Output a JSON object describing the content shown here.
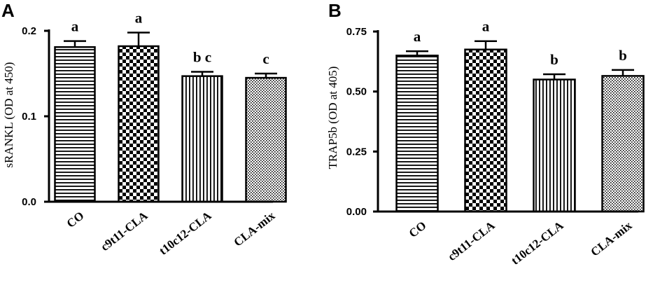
{
  "chart_data": [
    {
      "type": "bar",
      "panel_label": "A",
      "ylabel": "sRANKL (OD at 450)",
      "categories": [
        "CO",
        "c9t11-CLA",
        "t10c12-CLA",
        "CLA-mix"
      ],
      "values": [
        0.181,
        0.182,
        0.147,
        0.145
      ],
      "errors": [
        0.007,
        0.016,
        0.005,
        0.005
      ],
      "significance": [
        "a",
        "a",
        "b c",
        "c"
      ],
      "patterns": [
        "horizontal-lines",
        "checkerboard",
        "vertical-lines",
        "dots"
      ],
      "ylim": [
        0,
        0.2
      ],
      "yticks": [
        0.0,
        0.1,
        0.2
      ],
      "ytick_labels": [
        "0.0",
        "0.1",
        "0.2"
      ],
      "grid": false
    },
    {
      "type": "bar",
      "panel_label": "B",
      "ylabel": "TRAP5b (OD at 405)",
      "categories": [
        "CO",
        "c9t11-CLA",
        "t10c12-CLA",
        "CLA-mix"
      ],
      "values": [
        0.65,
        0.675,
        0.55,
        0.565
      ],
      "errors": [
        0.018,
        0.035,
        0.022,
        0.025
      ],
      "significance": [
        "a",
        "a",
        "b",
        "b"
      ],
      "patterns": [
        "horizontal-lines",
        "checkerboard",
        "vertical-lines",
        "dots"
      ],
      "ylim": [
        0,
        0.75
      ],
      "yticks": [
        0.0,
        0.25,
        0.5,
        0.75
      ],
      "ytick_labels": [
        "0.00",
        "0.25",
        "0.50",
        "0.75"
      ],
      "grid": false
    }
  ],
  "colors": {
    "ink": "#000000",
    "fill": "#ffffff"
  }
}
